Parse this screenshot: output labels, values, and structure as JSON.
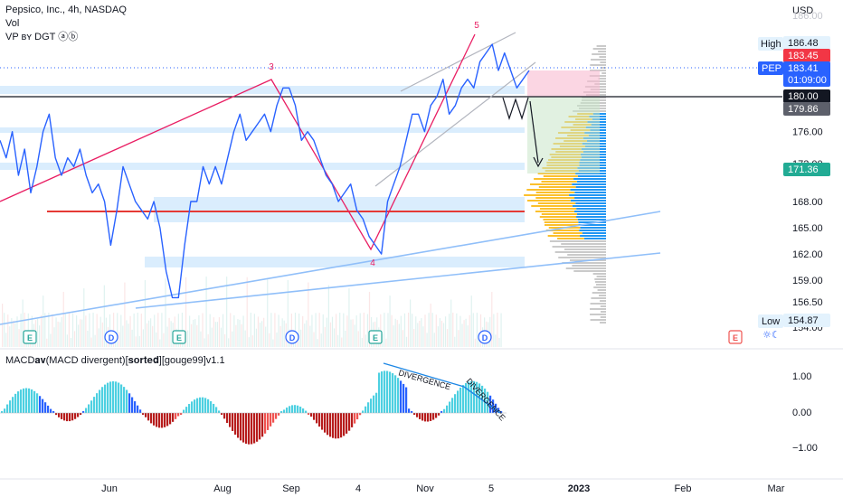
{
  "header": {
    "symbol_line": "Pepsico, Inc., 4h, NASDAQ",
    "vol_label": "Vol",
    "vp_label": "VP ʙʏ DGT ⓐⓑ",
    "currency": "USD"
  },
  "price_panel": {
    "high_label": "High",
    "high_value": "186.48",
    "low_label": "Low",
    "low_value": "154.87",
    "symbol_tag": "PEP",
    "last_price": "183.41",
    "countdown": "01:09:00",
    "red_tag": "183.45",
    "level_tag": "180.00",
    "gray_tag": "179.86",
    "target_tag": "171.36",
    "top_tick_partial": "186.00"
  },
  "macd": {
    "title": "MACD𝐚𝐯(MACD divergent)[𝐬𝐨𝐫𝐭𝐞𝐝][gouge99]v1.1",
    "ticks": [
      "1.00",
      "0.00",
      "−1.00"
    ],
    "divergence_label": "DIVERGENCE",
    "colors": {
      "pos_strong": "#2962ff",
      "pos_weak": "#4dd0e1",
      "neg_strong": "#b71c1c",
      "neg_weak": "#ef5350"
    }
  },
  "annotations": {
    "wave_labels": [
      "3",
      "4",
      "5"
    ],
    "event_markers": [
      "E",
      "D",
      "E",
      "D",
      "E",
      "D",
      "E"
    ]
  },
  "chart_data": {
    "type": "line",
    "title": "Pepsico, Inc., 4h, NASDAQ",
    "xlabel": "",
    "ylabel": "USD",
    "ylim": [
      153,
      188
    ],
    "x_ticks": [
      "Jun",
      "Aug",
      "Sep",
      "4",
      "Nov",
      "5",
      "2023",
      "Feb",
      "Mar"
    ],
    "y_ticks": [
      154.0,
      156.5,
      159.0,
      162.0,
      165.0,
      168.0,
      172.0,
      176.0,
      180.0
    ],
    "series": [
      {
        "name": "PEP",
        "color": "#2962ff",
        "values": [
          175,
          173,
          176,
          171,
          174,
          169,
          172,
          176,
          178,
          173,
          171,
          173,
          172,
          174,
          171,
          169,
          170,
          168,
          163,
          167,
          172,
          170,
          168,
          167,
          166,
          168,
          165,
          160,
          157,
          157,
          163,
          168,
          168,
          172,
          170,
          172,
          170,
          173,
          176,
          178,
          175,
          176,
          177,
          178,
          176,
          179,
          181,
          181,
          179,
          175,
          176,
          175,
          173,
          171,
          170,
          168,
          169,
          170,
          167,
          166,
          164,
          163,
          162,
          168,
          170,
          172,
          175,
          178,
          178,
          176,
          179,
          180,
          182,
          178,
          179,
          181,
          182,
          181,
          184,
          185,
          186,
          183,
          185,
          183,
          181,
          182,
          183
        ]
      }
    ],
    "key_levels": {
      "resistance": 180.0,
      "support": 167.8
    },
    "colors": {
      "price_line": "#2962ff",
      "wave_line": "#e91e63",
      "horizontal_level": "#e53935",
      "channel": "#b2b5be",
      "trendline": "#90bff9",
      "vp_up": "#2196f3",
      "vp_down": "#fbc02d"
    }
  }
}
